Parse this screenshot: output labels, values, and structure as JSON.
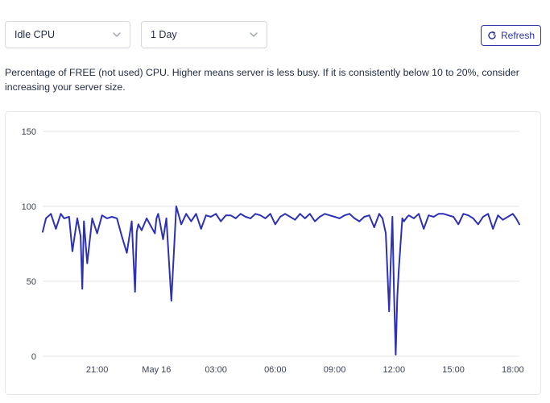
{
  "controls": {
    "metric": "Idle CPU",
    "range": "1 Day",
    "refresh_label": "Refresh"
  },
  "description": "Percentage of FREE (not used) CPU. Higher means server is less busy. If it is consistently below 10 to 20%, consider increasing your server size.",
  "colors": {
    "line": "#2c31b5",
    "accent": "#2d34a8",
    "grid": "#e3e5ea"
  },
  "icons": {
    "dropdown": "chevron-down-icon",
    "refresh": "refresh-icon"
  },
  "chart_data": {
    "type": "line",
    "title": "",
    "xlabel": "",
    "ylabel": "",
    "ylim": [
      0,
      150
    ],
    "yticks": [
      0,
      50,
      100,
      150
    ],
    "xlim": [
      "May 15 18:15",
      "May 16 18:20"
    ],
    "xticks": [
      "21:00",
      "May 16",
      "03:00",
      "06:00",
      "09:00",
      "12:00",
      "15:00",
      "18:00"
    ],
    "grid": true,
    "series": [
      {
        "x": [
          "May 15 18:15",
          "May 15 18:25",
          "May 15 18:40",
          "May 15 18:55",
          "May 15 19:10",
          "May 15 19:20",
          "May 15 19:35",
          "May 15 19:45",
          "May 15 19:55",
          "May 15 20:00",
          "May 15 20:10",
          "May 15 20:15",
          "May 15 20:20",
          "May 15 20:30",
          "May 15 20:45",
          "May 15 21:00",
          "May 15 21:15",
          "May 15 21:30",
          "May 15 21:45",
          "May 15 22:00",
          "May 15 22:15",
          "May 15 22:30",
          "May 15 22:45",
          "May 15 22:55",
          "May 15 23:00",
          "May 15 23:05",
          "May 15 23:15",
          "May 15 23:30",
          "May 15 23:45",
          "May 15 23:55",
          "May 16 00:00",
          "May 16 00:05",
          "May 16 00:10",
          "May 16 00:20",
          "May 16 00:30",
          "May 16 00:45",
          "May 16 01:00",
          "May 16 01:15",
          "May 16 01:30",
          "May 16 01:45",
          "May 16 02:00",
          "May 16 02:15",
          "May 16 02:30",
          "May 16 02:45",
          "May 16 03:00",
          "May 16 03:15",
          "May 16 03:30",
          "May 16 03:45",
          "May 16 04:00",
          "May 16 04:15",
          "May 16 04:30",
          "May 16 04:45",
          "May 16 05:00",
          "May 16 05:15",
          "May 16 05:30",
          "May 16 05:45",
          "May 16 06:00",
          "May 16 06:15",
          "May 16 06:30",
          "May 16 06:45",
          "May 16 07:00",
          "May 16 07:15",
          "May 16 07:30",
          "May 16 07:45",
          "May 16 08:00",
          "May 16 08:15",
          "May 16 08:30",
          "May 16 08:45",
          "May 16 09:00",
          "May 16 09:15",
          "May 16 09:30",
          "May 16 09:45",
          "May 16 10:00",
          "May 16 10:15",
          "May 16 10:30",
          "May 16 10:45",
          "May 16 11:00",
          "May 16 11:15",
          "May 16 11:25",
          "May 16 11:35",
          "May 16 11:45",
          "May 16 11:50",
          "May 16 11:55",
          "May 16 12:00",
          "May 16 12:05",
          "May 16 12:10",
          "May 16 12:15",
          "May 16 12:25",
          "May 16 12:30",
          "May 16 12:40",
          "May 16 12:45",
          "May 16 13:00",
          "May 16 13:15",
          "May 16 13:30",
          "May 16 13:45",
          "May 16 14:00",
          "May 16 14:15",
          "May 16 14:30",
          "May 16 14:45",
          "May 16 15:00",
          "May 16 15:15",
          "May 16 15:30",
          "May 16 15:45",
          "May 16 16:00",
          "May 16 16:15",
          "May 16 16:30",
          "May 16 16:45",
          "May 16 17:00",
          "May 16 17:15",
          "May 16 17:30",
          "May 16 17:45",
          "May 16 18:00",
          "May 16 18:10",
          "May 16 18:20"
        ],
        "y": [
          83,
          92,
          95,
          85,
          95,
          92,
          93,
          70,
          85,
          92,
          80,
          45,
          90,
          62,
          92,
          82,
          94,
          92,
          93,
          92,
          80,
          69,
          90,
          43,
          83,
          88,
          84,
          92,
          86,
          82,
          92,
          95,
          90,
          78,
          92,
          37,
          100,
          88,
          95,
          90,
          95,
          85,
          94,
          93,
          95,
          90,
          94,
          94,
          92,
          95,
          93,
          92,
          95,
          94,
          92,
          95,
          88,
          93,
          95,
          93,
          91,
          95,
          92,
          95,
          90,
          93,
          95,
          94,
          93,
          92,
          94,
          95,
          92,
          90,
          93,
          94,
          86,
          95,
          92,
          82,
          30,
          62,
          93,
          42,
          1,
          40,
          60,
          92,
          90,
          93,
          94,
          92,
          95,
          85,
          94,
          93,
          95,
          95,
          94,
          93,
          88,
          95,
          94,
          92,
          88,
          93,
          95,
          85,
          94,
          91,
          93,
          95,
          92,
          88
        ]
      }
    ]
  }
}
